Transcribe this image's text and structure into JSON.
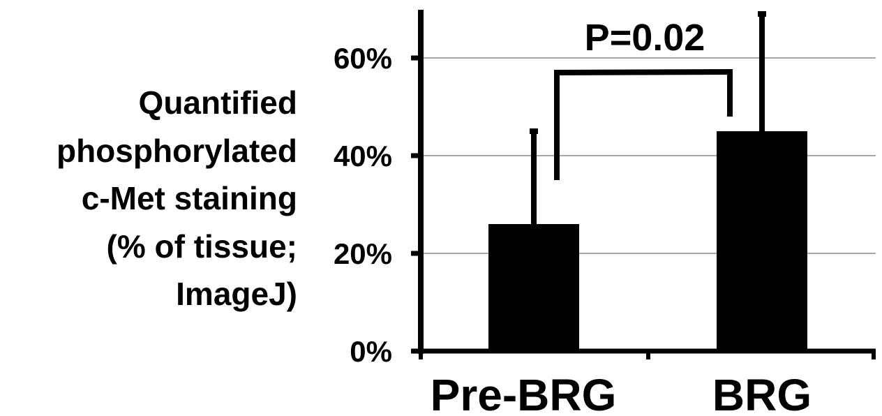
{
  "chart_data": {
    "type": "bar",
    "title": "",
    "xlabel": "",
    "ylabel_lines": [
      "Quantified",
      "phosphorylated",
      "c-Met staining",
      "(% of tissue;",
      "ImageJ)"
    ],
    "categories": [
      "Pre-BRG",
      "BRG"
    ],
    "values": [
      0.26,
      0.45
    ],
    "error_upper": [
      0.45,
      0.69
    ],
    "ylim": [
      0,
      0.7
    ],
    "yticks": [
      0,
      0.2,
      0.4,
      0.6
    ],
    "ytick_labels": [
      "0%",
      "20%",
      "40%",
      "60%"
    ],
    "grid": true,
    "legend": "none",
    "bar_color": "#000000",
    "grid_color": "#a6a6a6",
    "annotation": {
      "text": "P=0.02",
      "from_category": 0,
      "to_category": 1,
      "left_bottom": 0.35,
      "right_bottom": 0.48,
      "bracket_level": 0.57
    }
  }
}
